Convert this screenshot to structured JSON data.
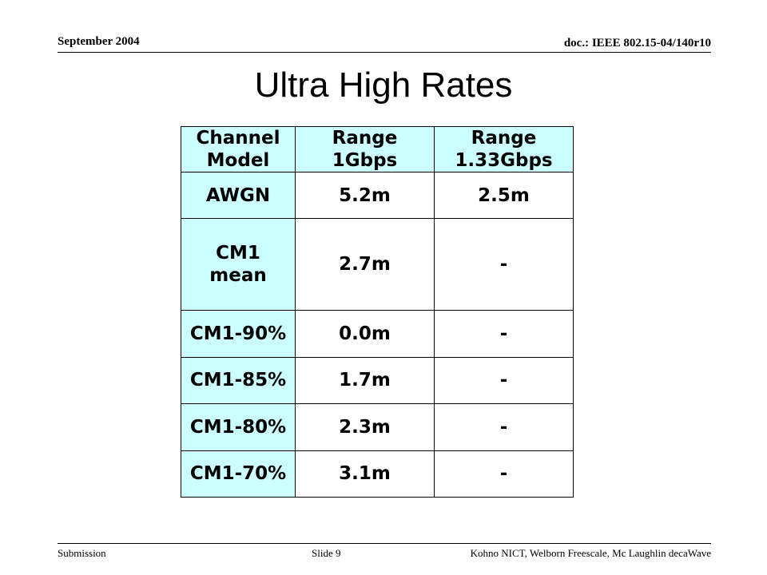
{
  "header": {
    "date": "September 2004",
    "doc": "doc.: IEEE 802.15-04/140r10"
  },
  "title": "Ultra High Rates",
  "table": {
    "columns": [
      [
        "Channel",
        "Model"
      ],
      [
        "Range",
        "1Gbps"
      ],
      [
        "Range",
        "1.33Gbps"
      ]
    ],
    "rows": [
      {
        "model": [
          "AWGN"
        ],
        "r1": "5.2m",
        "r2": "2.5m"
      },
      {
        "model": [
          "CM1",
          "mean"
        ],
        "r1": "2.7m",
        "r2": "-"
      },
      {
        "model": [
          "CM1-90%"
        ],
        "r1": "0.0m",
        "r2": "-"
      },
      {
        "model": [
          "CM1-85%"
        ],
        "r1": "1.7m",
        "r2": "-"
      },
      {
        "model": [
          "CM1-80%"
        ],
        "r1": "2.3m",
        "r2": "-"
      },
      {
        "model": [
          "CM1-70%"
        ],
        "r1": "3.1m",
        "r2": "-"
      }
    ]
  },
  "footer": {
    "left": "Submission",
    "slide": "Slide 9",
    "right": "Kohno NICT, Welborn Freescale, Mc Laughlin decaWave"
  },
  "colors": {
    "header_cell_bg": "#ccffff",
    "border": "#000000"
  }
}
